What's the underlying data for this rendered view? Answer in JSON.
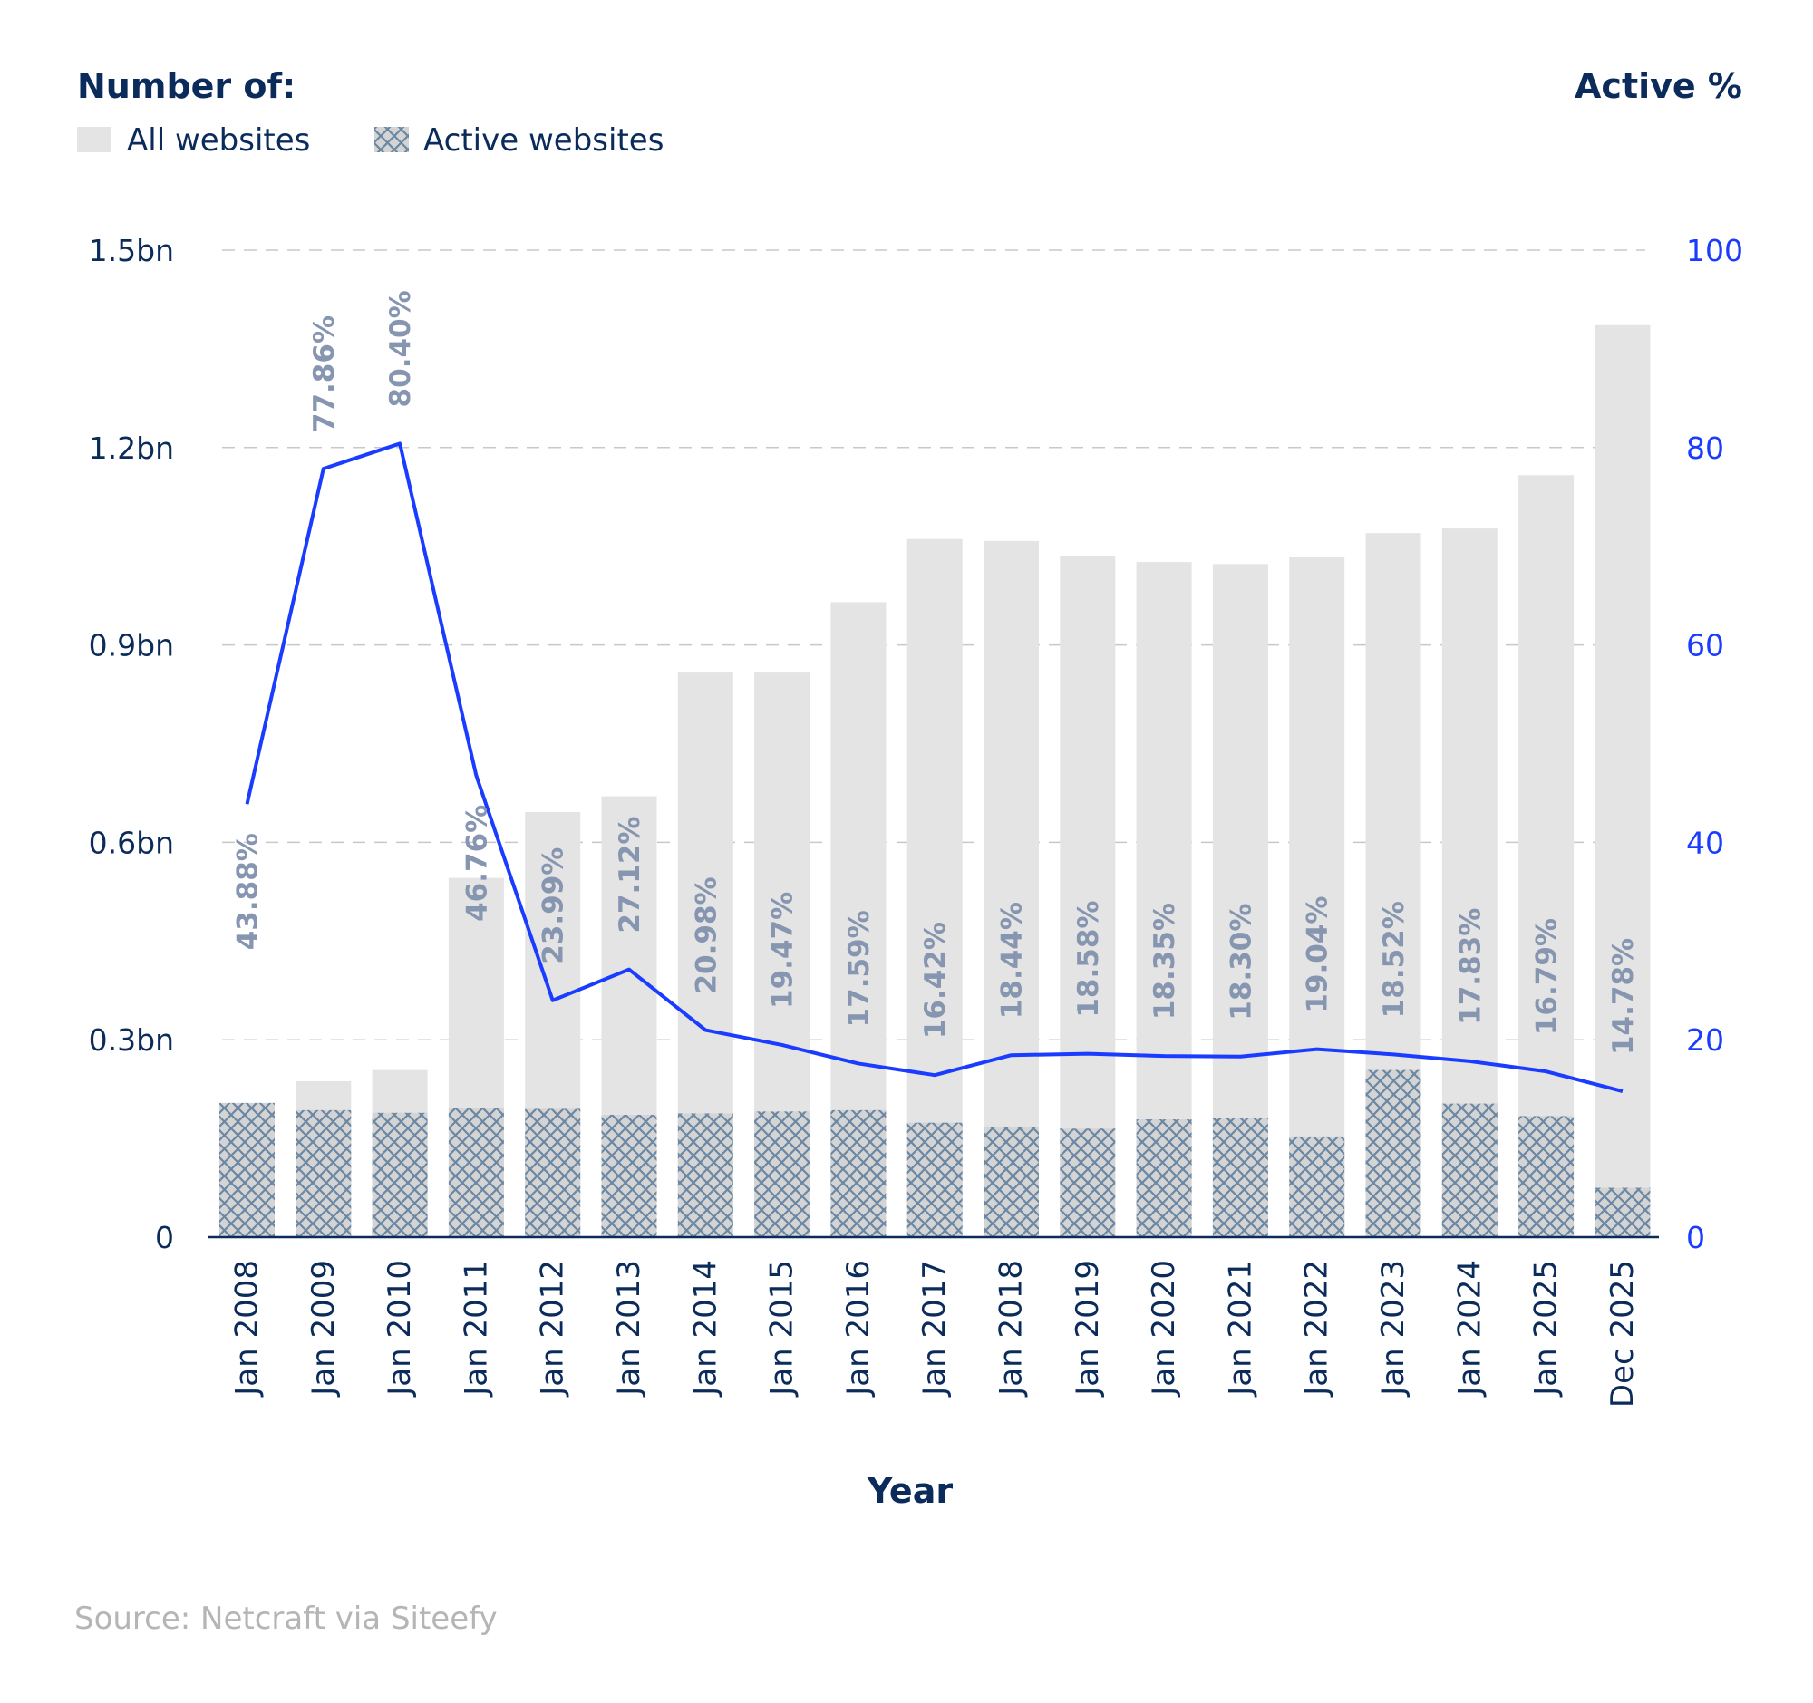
{
  "chart_data": {
    "type": "bar",
    "left_axis_title": "Number of:",
    "right_axis_title": "Active %",
    "xlabel": "Year",
    "source": "Source: Netcraft via Siteefy",
    "categories": [
      "Jan 2008",
      "Jan 2009",
      "Jan 2010",
      "Jan 2011",
      "Jan 2012",
      "Jan 2013",
      "Jan 2014",
      "Jan 2015",
      "Jan 2016",
      "Jan 2017",
      "Jan 2018",
      "Jan 2019",
      "Jan 2020",
      "Jan 2021",
      "Jan 2022",
      "Jan 2023",
      "Jan 2024",
      "Jan 2025",
      "Dec 2025"
    ],
    "series": [
      {
        "name": "All websites",
        "type": "bar",
        "axis": "left",
        "unit": "bn",
        "color": "#e4e4e4",
        "values": [
          0.204,
          0.237,
          0.254,
          0.546,
          0.646,
          0.67,
          0.858,
          0.858,
          0.965,
          1.061,
          1.058,
          1.035,
          1.026,
          1.023,
          1.033,
          1.07,
          1.077,
          1.158,
          1.386
        ]
      },
      {
        "name": "Active websites",
        "type": "bar-hatched",
        "axis": "left",
        "unit": "bn",
        "color": "#d4d4d4",
        "hatch_color": "#6a87a3",
        "values": [
          0.204,
          0.193,
          0.189,
          0.196,
          0.195,
          0.186,
          0.188,
          0.191,
          0.193,
          0.174,
          0.168,
          0.165,
          0.179,
          0.181,
          0.153,
          0.254,
          0.203,
          0.184,
          0.075
        ]
      },
      {
        "type": "line",
        "axis": "right",
        "color": "#1a3cff",
        "values": [
          43.88,
          77.86,
          80.4,
          46.76,
          23.99,
          27.12,
          20.98,
          19.47,
          17.59,
          16.42,
          18.44,
          18.58,
          18.35,
          18.3,
          19.04,
          18.52,
          17.83,
          16.79,
          14.78
        ],
        "labels": [
          "43.88%",
          "77.86%",
          "80.40%",
          "46.76%",
          "23.99%",
          "27.12%",
          "20.98%",
          "19.47%",
          "17.59%",
          "16.42%",
          "18.44%",
          "18.58%",
          "18.35%",
          "18.30%",
          "19.04%",
          "18.52%",
          "17.83%",
          "16.79%",
          "14.78%"
        ],
        "label_color": "#8796b0"
      }
    ],
    "left_axis": {
      "ylim": [
        0,
        1.5
      ],
      "ticks": [
        0,
        0.3,
        0.6,
        0.9,
        1.2,
        1.5
      ],
      "tick_labels": [
        "0",
        "0.3bn",
        "0.6bn",
        "0.9bn",
        "1.2bn",
        "1.5bn"
      ],
      "color": "#0b2b5b"
    },
    "right_axis": {
      "ylim": [
        0,
        100
      ],
      "ticks": [
        0,
        20,
        40,
        60,
        80,
        100
      ],
      "tick_labels": [
        "0",
        "20",
        "40",
        "60",
        "80",
        "100"
      ],
      "color": "#1a3cff"
    },
    "grid": true,
    "legend": {
      "position": "top-left",
      "items": [
        "All websites",
        "Active websites"
      ]
    }
  }
}
